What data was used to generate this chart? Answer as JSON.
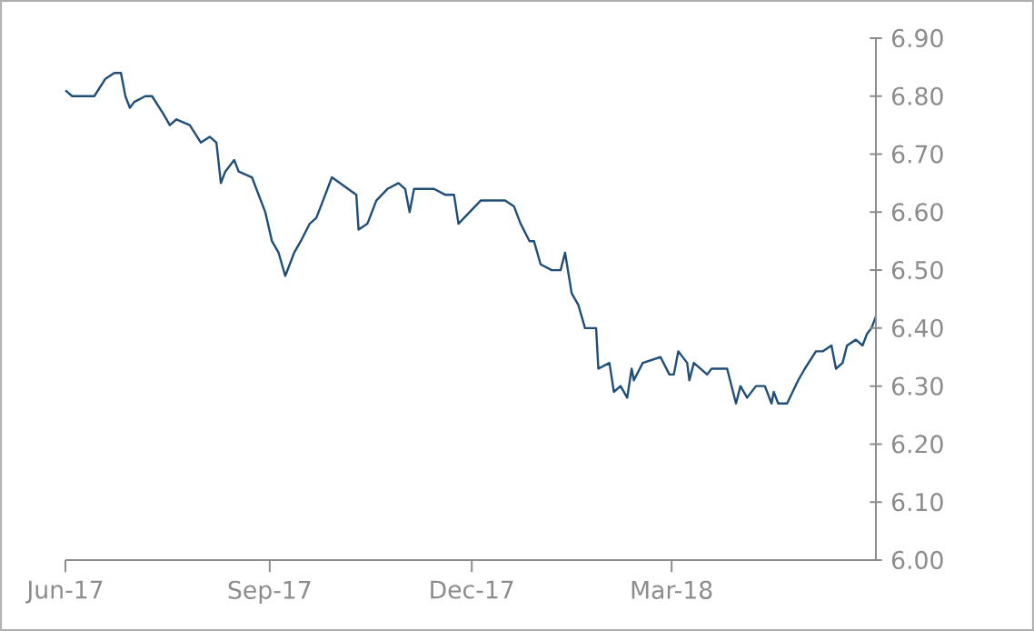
{
  "chart_data": {
    "type": "line",
    "color": "#1f4e79",
    "x": [
      "2017-06-01",
      "2017-06-04",
      "2017-06-07",
      "2017-06-13",
      "2017-06-14",
      "2017-06-19",
      "2017-06-23",
      "2017-06-26",
      "2017-06-28",
      "2017-06-30",
      "2017-07-02",
      "2017-07-07",
      "2017-07-10",
      "2017-07-15",
      "2017-07-18",
      "2017-07-21",
      "2017-07-27",
      "2017-08-01",
      "2017-08-05",
      "2017-08-08",
      "2017-08-10",
      "2017-08-12",
      "2017-08-16",
      "2017-08-18",
      "2017-08-24",
      "2017-08-30",
      "2017-09-02",
      "2017-09-05",
      "2017-09-08",
      "2017-09-12",
      "2017-09-15",
      "2017-09-19",
      "2017-09-22",
      "2017-09-25",
      "2017-09-29",
      "2017-10-10",
      "2017-10-11",
      "2017-10-15",
      "2017-10-19",
      "2017-10-24",
      "2017-10-29",
      "2017-11-01",
      "2017-11-03",
      "2017-11-05",
      "2017-11-10",
      "2017-11-14",
      "2017-11-19",
      "2017-11-23",
      "2017-11-25",
      "2017-11-30",
      "2017-12-05",
      "2017-12-11",
      "2017-12-16",
      "2017-12-20",
      "2017-12-23",
      "2017-12-27",
      "2017-12-29",
      "2018-01-01",
      "2018-01-06",
      "2018-01-10",
      "2018-01-12",
      "2018-01-15",
      "2018-01-18",
      "2018-01-21",
      "2018-01-26",
      "2018-01-27",
      "2018-02-01",
      "2018-02-03",
      "2018-02-06",
      "2018-02-09",
      "2018-02-11",
      "2018-02-12",
      "2018-02-16",
      "2018-02-24",
      "2018-02-28",
      "2018-03-02",
      "2018-03-04",
      "2018-03-08",
      "2018-03-09",
      "2018-03-11",
      "2018-03-17",
      "2018-03-19",
      "2018-03-26",
      "2018-03-30",
      "2018-04-01",
      "2018-04-04",
      "2018-04-08",
      "2018-04-12",
      "2018-04-15",
      "2018-04-16",
      "2018-04-18",
      "2018-04-22",
      "2018-04-27",
      "2018-04-30",
      "2018-05-05",
      "2018-05-08",
      "2018-05-12",
      "2018-05-14",
      "2018-05-17",
      "2018-05-19",
      "2018-05-23",
      "2018-05-26",
      "2018-05-28",
      "2018-05-30",
      "2018-06-01"
    ],
    "values": [
      6.81,
      6.8,
      6.8,
      6.8,
      6.8,
      6.83,
      6.84,
      6.84,
      6.8,
      6.78,
      6.79,
      6.8,
      6.8,
      6.77,
      6.75,
      6.76,
      6.75,
      6.72,
      6.73,
      6.72,
      6.65,
      6.67,
      6.69,
      6.67,
      6.66,
      6.6,
      6.55,
      6.53,
      6.49,
      6.53,
      6.55,
      6.58,
      6.59,
      6.62,
      6.66,
      6.63,
      6.57,
      6.58,
      6.62,
      6.64,
      6.65,
      6.64,
      6.6,
      6.64,
      6.64,
      6.64,
      6.63,
      6.63,
      6.58,
      6.6,
      6.62,
      6.62,
      6.62,
      6.61,
      6.58,
      6.55,
      6.55,
      6.51,
      6.5,
      6.5,
      6.53,
      6.46,
      6.44,
      6.4,
      6.4,
      6.33,
      6.34,
      6.29,
      6.3,
      6.28,
      6.33,
      6.31,
      6.34,
      6.35,
      6.32,
      6.32,
      6.36,
      6.34,
      6.31,
      6.34,
      6.32,
      6.33,
      6.33,
      6.27,
      6.3,
      6.28,
      6.3,
      6.3,
      6.27,
      6.29,
      6.27,
      6.27,
      6.31,
      6.33,
      6.36,
      6.36,
      6.37,
      6.33,
      6.34,
      6.37,
      6.38,
      6.37,
      6.39,
      6.4,
      6.42
    ],
    "xlim": [
      "2017-06-01",
      "2018-06-01"
    ],
    "xticks": [
      {
        "value": "2017-06-01",
        "label": "Jun-17"
      },
      {
        "value": "2017-09-01",
        "label": "Sep-17"
      },
      {
        "value": "2017-12-01",
        "label": "Dec-17"
      },
      {
        "value": "2018-03-01",
        "label": "Mar-18"
      }
    ],
    "ylim": [
      6.0,
      6.9
    ],
    "yticks": [
      {
        "value": 6.0,
        "label": "6.00"
      },
      {
        "value": 6.1,
        "label": "6.10"
      },
      {
        "value": 6.2,
        "label": "6.20"
      },
      {
        "value": 6.3,
        "label": "6.30"
      },
      {
        "value": 6.4,
        "label": "6.40"
      },
      {
        "value": 6.5,
        "label": "6.50"
      },
      {
        "value": 6.6,
        "label": "6.60"
      },
      {
        "value": 6.7,
        "label": "6.70"
      },
      {
        "value": 6.8,
        "label": "6.80"
      },
      {
        "value": 6.9,
        "label": "6.90"
      }
    ]
  }
}
